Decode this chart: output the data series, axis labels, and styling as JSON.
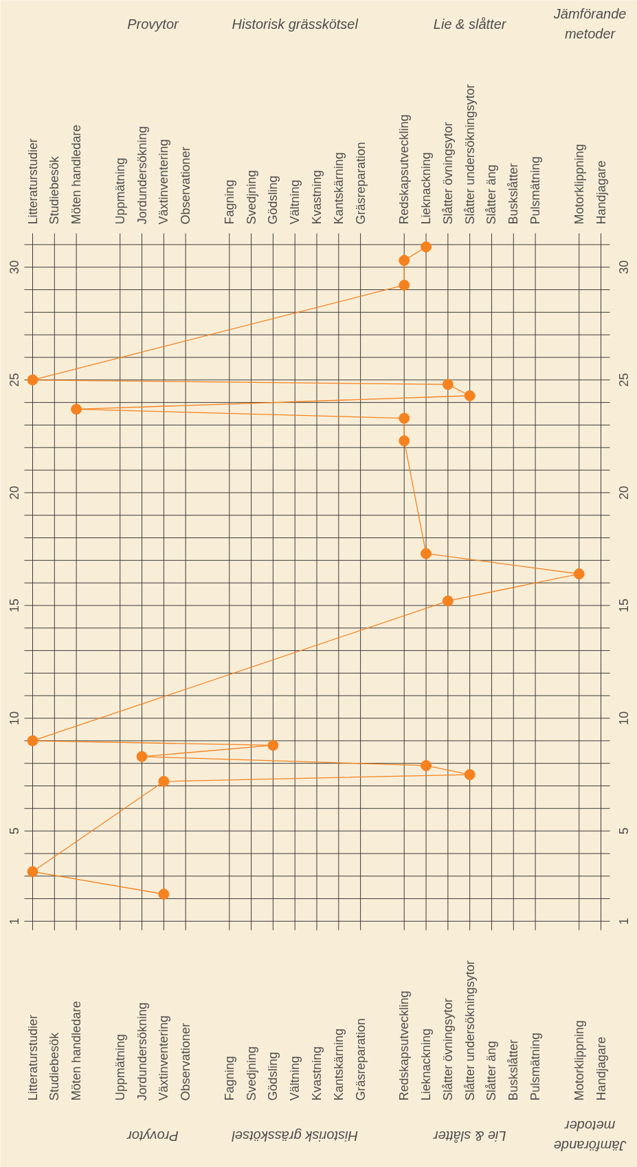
{
  "chart_data": {
    "type": "line",
    "categories": [
      "Litteraturstudier",
      "Studiebesök",
      "Möten handledare",
      null,
      "Uppmätning",
      "Jordundersökning",
      "Växtinventering",
      "Observationer",
      null,
      "Fagning",
      "Svedjning",
      "Gödsling",
      "Vältning",
      "Kvastning",
      "Kantskärning",
      "Gräsreparation",
      null,
      "Redskapsutveckling",
      "Lieknackning",
      "Slåtter övningsytor",
      "Slåtter undersökningsytor",
      "Slåtter äng",
      "Buskslåtter",
      "Pulsmätning",
      null,
      "Motorklippning",
      "Handjagare"
    ],
    "series": [
      {
        "color": "#f5821f",
        "x": [
          "Växtinventering",
          "Litteraturstudier",
          "Växtinventering",
          "Slåtter undersökningsytor",
          "Lieknackning",
          "Jordundersökning",
          "Gödsling",
          "Litteraturstudier",
          "Slåtter övningsytor",
          "Motorklippning",
          "Lieknackning",
          "Redskapsutveckling",
          "Redskapsutveckling",
          "Möten handledare",
          "Slåtter undersökningsytor",
          "Slåtter övningsytor",
          "Litteraturstudier",
          "Redskapsutveckling",
          "Redskapsutveckling",
          "Lieknackning"
        ],
        "values": [
          2.2,
          3.2,
          7.2,
          7.5,
          7.9,
          8.3,
          8.8,
          9.0,
          15.2,
          16.4,
          17.3,
          22.3,
          23.3,
          23.7,
          24.3,
          24.8,
          25.0,
          29.2,
          30.3,
          30.9
        ]
      }
    ],
    "annotations": [
      "Provytor",
      "Historisk grässkötsel",
      "Lie & slåtter",
      "Jämförande metoder"
    ],
    "ylim": [
      0.6,
      31.5
    ],
    "yticks": [
      1,
      {
        "value": 2,
        "label": null
      },
      {
        "value": 3,
        "label": null
      },
      {
        "value": 4,
        "label": null
      },
      5,
      {
        "value": 6,
        "label": null
      },
      {
        "value": 7,
        "label": null
      },
      {
        "value": 8,
        "label": null
      },
      {
        "value": 9,
        "label": null
      },
      10,
      {
        "value": 11,
        "label": null
      },
      {
        "value": 12,
        "label": null
      },
      {
        "value": 13,
        "label": null
      },
      {
        "value": 14,
        "label": null
      },
      15,
      {
        "value": 16,
        "label": null
      },
      {
        "value": 17,
        "label": null
      },
      {
        "value": 18,
        "label": null
      },
      {
        "value": 19,
        "label": null
      },
      20,
      {
        "value": 21,
        "label": null
      },
      {
        "value": 22,
        "label": null
      },
      {
        "value": 23,
        "label": null
      },
      {
        "value": 24,
        "label": null
      },
      25,
      {
        "value": 26,
        "label": null
      },
      {
        "value": 27,
        "label": null
      },
      {
        "value": 28,
        "label": null
      },
      {
        "value": 29,
        "label": null
      },
      30,
      {
        "value": 31,
        "label": null
      }
    ],
    "y2lim": [
      0.6,
      31.5
    ],
    "y2ticks": [
      1,
      {
        "value": 2,
        "label": null
      },
      {
        "value": 3,
        "label": null
      },
      {
        "value": 4,
        "label": null
      },
      5,
      {
        "value": 6,
        "label": null
      },
      {
        "value": 7,
        "label": null
      },
      {
        "value": 8,
        "label": null
      },
      {
        "value": 9,
        "label": null
      },
      10,
      {
        "value": 11,
        "label": null
      },
      {
        "value": 12,
        "label": null
      },
      {
        "value": 13,
        "label": null
      },
      {
        "value": 14,
        "label": null
      },
      15,
      {
        "value": 16,
        "label": null
      },
      {
        "value": 17,
        "label": null
      },
      {
        "value": 18,
        "label": null
      },
      {
        "value": 19,
        "label": null
      },
      20,
      {
        "value": 21,
        "label": null
      },
      {
        "value": 22,
        "label": null
      },
      {
        "value": 23,
        "label": null
      },
      {
        "value": 24,
        "label": null
      },
      25,
      {
        "value": 26,
        "label": null
      },
      {
        "value": 27,
        "label": null
      },
      {
        "value": 28,
        "label": null
      },
      {
        "value": 29,
        "label": null
      },
      30,
      {
        "value": 31,
        "label": null
      }
    ],
    "grid": true,
    "marker": "circle",
    "line_style": "solid"
  }
}
